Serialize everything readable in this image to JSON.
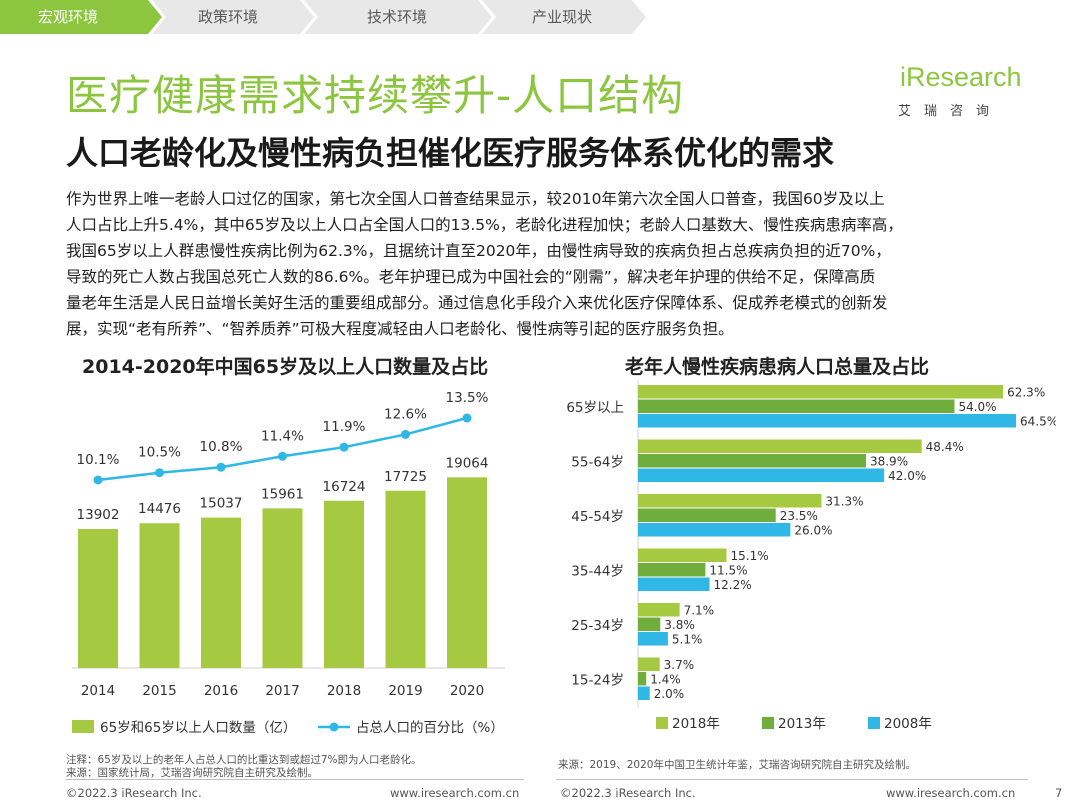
{
  "nav": {
    "tabs": [
      {
        "label": "宏观环境",
        "active": true
      },
      {
        "label": "政策环境",
        "active": false
      },
      {
        "label": "技术环境",
        "active": false
      },
      {
        "label": "产业现状",
        "active": false
      }
    ]
  },
  "header": {
    "title": "医疗健康需求持续攀升-人口结构",
    "subtitle": "人口老龄化及慢性病负担催化医疗服务体系优化的需求"
  },
  "logo": {
    "brand": "iResearch",
    "sub": "艾瑞咨询"
  },
  "body": {
    "lines": [
      "作为世界上唯一老龄人口过亿的国家，第七次全国人口普查结果显示，较2010年第六次全国人口普查，我国60岁及以上",
      "人口占比上升5.4%，其中65岁及以上人口占全国人口的13.5%，老龄化进程加快；老龄人口基数大、慢性疾病患病率高，",
      "我国65岁以上人群患慢性疾病比例为62.3%，且据统计直至2020年，由慢性病导致的疾病负担占总疾病负担的近70%，",
      "导致的死亡人数占我国总死亡人数的86.6%。老年护理已成为中国社会的“刚需”，解决老年护理的供给不足，保障高质",
      "量老年生活是人民日益增长美好生活的重要组成部分。通过信息化手段介入来优化医疗保障体系、促成养老模式的创新发",
      "展，实现“老有所养”、“智养质养”可极大程度减轻由人口老龄化、慢性病等引起的医疗服务负担。"
    ]
  },
  "chart_data": [
    {
      "type": "bar+line",
      "title": "2014-2020年中国65岁及以上人口数量及占比",
      "categories": [
        "2014",
        "2015",
        "2016",
        "2017",
        "2018",
        "2019",
        "2020"
      ],
      "series": [
        {
          "name": "65岁和65岁以上人口数量（亿）",
          "kind": "bar",
          "values": [
            13902,
            14476,
            15037,
            15961,
            16724,
            17725,
            19064
          ],
          "labels": [
            "13902",
            "14476",
            "15037",
            "15961",
            "16724",
            "17725",
            "19064"
          ]
        },
        {
          "name": "占总人口的百分比（%）",
          "kind": "line",
          "values": [
            10.1,
            10.5,
            10.8,
            11.4,
            11.9,
            12.6,
            13.5
          ],
          "labels": [
            "10.1%",
            "10.5%",
            "10.8%",
            "11.4%",
            "11.9%",
            "12.6%",
            "13.5%"
          ]
        }
      ],
      "colors": {
        "bar": "#a5c940",
        "line": "#2fb7e6"
      }
    },
    {
      "type": "bar",
      "orientation": "horizontal",
      "title": "老年人慢性疾病患病人口总量及占比",
      "categories": [
        "65岁以上",
        "55-64岁",
        "45-54岁",
        "35-44岁",
        "25-34岁",
        "15-24岁"
      ],
      "series": [
        {
          "name": "2018年",
          "values": [
            62.3,
            48.4,
            31.3,
            15.1,
            7.1,
            3.7
          ],
          "labels": [
            "62.3%",
            "48.4%",
            "31.3%",
            "15.1%",
            "7.1%",
            "3.7%"
          ],
          "color": "#a5c940"
        },
        {
          "name": "2013年",
          "values": [
            54.0,
            38.9,
            23.5,
            11.5,
            3.8,
            1.4
          ],
          "labels": [
            "54.0%",
            "38.9%",
            "23.5%",
            "11.5%",
            "3.8%",
            "1.4%"
          ],
          "color": "#6fae3c"
        },
        {
          "name": "2008年",
          "values": [
            64.5,
            42.0,
            26.0,
            12.2,
            5.1,
            2.0
          ],
          "labels": [
            "64.5%",
            "42.0%",
            "26.0%",
            "12.2%",
            "5.1%",
            "2.0%"
          ],
          "color": "#2fb7e6"
        }
      ],
      "xlim": [
        0,
        70
      ]
    }
  ],
  "notes": {
    "left_note": "注释：65岁及以上的老年人占总人口的比重达到或超过7%即为人口老龄化。",
    "left_source": "来源：国家统计局，艾瑞咨询研究院自主研究及绘制。",
    "right_source": "来源：2019、2020年中国卫生统计年鉴，艾瑞咨询研究院自主研究及绘制。"
  },
  "footer": {
    "copyright_left": "©2022.3 iResearch Inc.",
    "url_left": "www.iresearch.com.cn",
    "copyright_right": "©2022.3 iResearch Inc.",
    "url_right": "www.iresearch.com.cn",
    "page": "7"
  }
}
